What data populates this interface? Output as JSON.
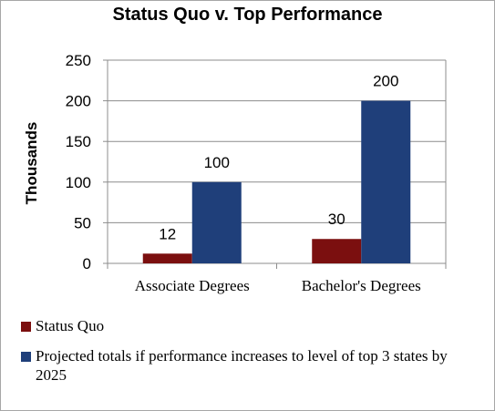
{
  "chart_data": {
    "type": "bar",
    "title": "Status Quo v. Top Performance",
    "ylabel": "Thousands",
    "xlabel": "",
    "ylim": [
      0,
      250
    ],
    "yticks": [
      0,
      50,
      100,
      150,
      200,
      250
    ],
    "grid": true,
    "legend_position": "bottom",
    "categories": [
      "Associate Degrees",
      "Bachelor's Degrees"
    ],
    "series": [
      {
        "name": "Status Quo",
        "values": [
          12,
          30
        ],
        "color": "#7b0f0f"
      },
      {
        "name": "Projected totals if performance increases to level of top 3 states by 2025",
        "values": [
          100,
          200
        ],
        "color": "#1f3f7a"
      }
    ]
  }
}
